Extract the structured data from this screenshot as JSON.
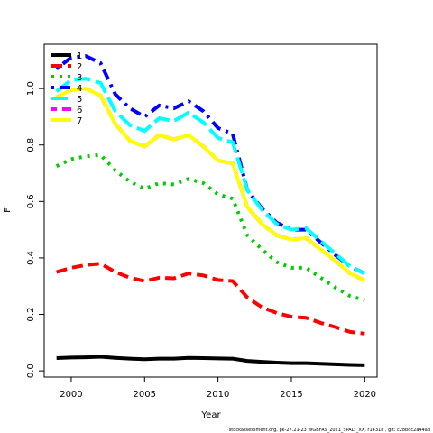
{
  "chart_data": {
    "type": "line",
    "xlabel": "Year",
    "ylabel": "F",
    "footer": "stockassessment.org, pk-27.21-23 WGBFAS_2021_SPALY_XX, r14318 , git: c28bdc2a44ad",
    "x": [
      1999,
      2000,
      2001,
      2002,
      2003,
      2004,
      2005,
      2006,
      2007,
      2008,
      2009,
      2010,
      2011,
      2012,
      2013,
      2014,
      2015,
      2016,
      2017,
      2018,
      2019,
      2020
    ],
    "xlim": [
      1998.16,
      2020.84
    ],
    "xticks": [
      2000,
      2005,
      2010,
      2015,
      2020
    ],
    "ylim": [
      -0.022,
      1.157
    ],
    "yticks": [
      {
        "value": 0,
        "label": "0.0"
      },
      {
        "value": 0.2,
        "label": "0.2"
      },
      {
        "value": 0.4,
        "label": "0.4"
      },
      {
        "value": 0.6,
        "label": "0.6"
      },
      {
        "value": 0.8,
        "label": "0.8"
      },
      {
        "value": 1,
        "label": "1.0"
      }
    ],
    "legend": "top-left",
    "series": [
      {
        "name": "1",
        "color": "#000000",
        "linestyle": "solid",
        "values": [
          0.045,
          0.047,
          0.048,
          0.05,
          0.046,
          0.043,
          0.041,
          0.043,
          0.043,
          0.046,
          0.045,
          0.044,
          0.043,
          0.035,
          0.032,
          0.029,
          0.027,
          0.027,
          0.025,
          0.023,
          0.021,
          0.02
        ]
      },
      {
        "name": "2",
        "color": "#ff0000",
        "linestyle": "dashed",
        "values": [
          0.35,
          0.365,
          0.375,
          0.38,
          0.35,
          0.33,
          0.318,
          0.33,
          0.328,
          0.345,
          0.338,
          0.322,
          0.318,
          0.26,
          0.225,
          0.205,
          0.192,
          0.188,
          0.17,
          0.155,
          0.138,
          0.132
        ]
      },
      {
        "name": "3",
        "color": "#00cd00",
        "linestyle": "dotted",
        "values": [
          0.725,
          0.75,
          0.76,
          0.765,
          0.71,
          0.67,
          0.645,
          0.665,
          0.66,
          0.68,
          0.665,
          0.625,
          0.61,
          0.48,
          0.43,
          0.385,
          0.365,
          0.365,
          0.33,
          0.295,
          0.265,
          0.25
        ]
      },
      {
        "name": "4",
        "color": "#0000ff",
        "linestyle": "dotdash",
        "values": [
          1.07,
          1.11,
          1.115,
          1.09,
          0.98,
          0.93,
          0.9,
          0.94,
          0.93,
          0.955,
          0.92,
          0.86,
          0.84,
          0.64,
          0.575,
          0.525,
          0.5,
          0.5,
          0.455,
          0.41,
          0.37,
          0.345
        ]
      },
      {
        "name": "5",
        "color": "#00ffff",
        "linestyle": "longdash",
        "values": [
          0.99,
          1.03,
          1.035,
          1.02,
          0.92,
          0.87,
          0.85,
          0.895,
          0.885,
          0.915,
          0.88,
          0.825,
          0.81,
          0.64,
          0.57,
          0.52,
          0.5,
          0.505,
          0.46,
          0.415,
          0.37,
          0.345
        ]
      },
      {
        "name": "6",
        "color": "#ff00ff",
        "linestyle": "twodash",
        "values": [
          0.97,
          0.995,
          1.0,
          0.975,
          0.875,
          0.815,
          0.795,
          0.835,
          0.82,
          0.835,
          0.795,
          0.745,
          0.735,
          0.58,
          0.52,
          0.48,
          0.465,
          0.47,
          0.43,
          0.39,
          0.345,
          0.32
        ]
      },
      {
        "name": "7",
        "color": "#ffff00",
        "linestyle": "solid",
        "values": [
          0.97,
          0.995,
          1.0,
          0.975,
          0.875,
          0.815,
          0.795,
          0.835,
          0.82,
          0.835,
          0.795,
          0.745,
          0.735,
          0.58,
          0.52,
          0.48,
          0.465,
          0.47,
          0.43,
          0.39,
          0.345,
          0.32
        ]
      }
    ]
  }
}
